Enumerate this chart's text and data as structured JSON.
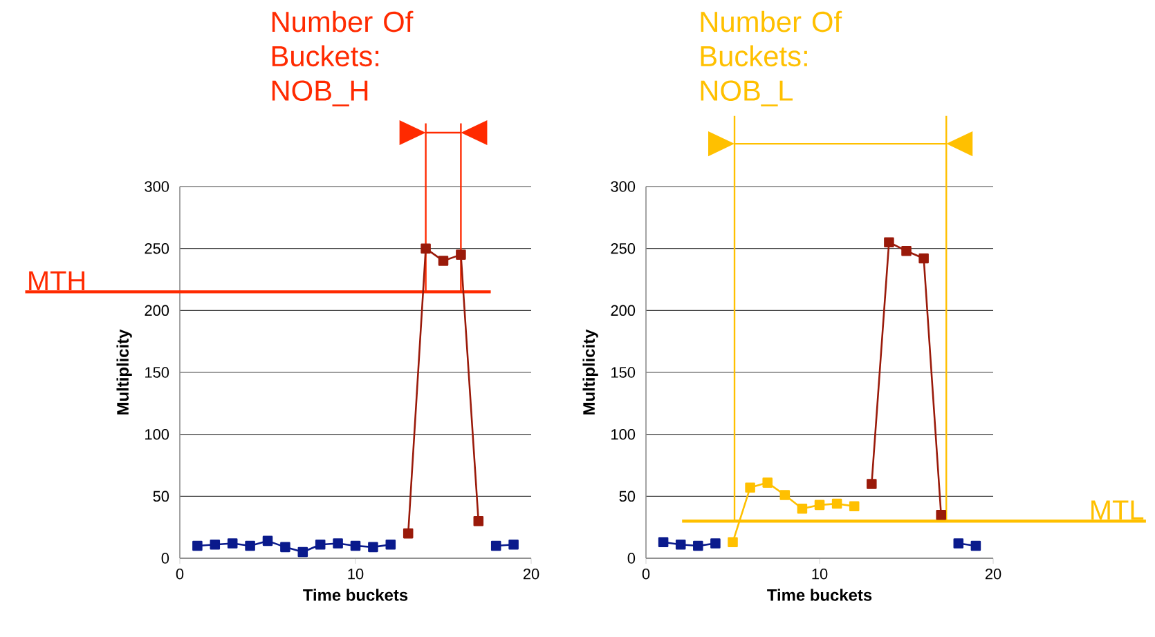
{
  "chart_data": [
    {
      "type": "line",
      "xlabel": "Time buckets",
      "ylabel": "Multiplicity",
      "xlim": [
        0,
        20
      ],
      "xticks": [
        0,
        10,
        20
      ],
      "ylim": [
        0,
        300
      ],
      "yticks": [
        0,
        50,
        100,
        150,
        200,
        250,
        300
      ],
      "grid": "y",
      "marker": "square",
      "line_style": "solid",
      "annotations": [
        "Number Of Buckets: NOB_H"
      ],
      "ref_lines": [
        {
          "axis": "y",
          "value": 215,
          "label": "MTH",
          "color": "#ff2a00"
        },
        {
          "axis": "x",
          "value": 14,
          "color": "#ff2a00"
        },
        {
          "axis": "x",
          "value": 16,
          "color": "#ff2a00"
        }
      ],
      "series": [
        {
          "color": "#0a1a8c",
          "x": [
            1,
            2,
            3,
            4,
            5,
            6,
            7,
            8,
            9,
            10,
            11,
            12,
            13,
            17,
            18,
            19
          ],
          "values": [
            10,
            11,
            12,
            10,
            14,
            9,
            5,
            11,
            12,
            10,
            9,
            11,
            null,
            null,
            10,
            11
          ]
        },
        {
          "color": "#9a1a0a",
          "x": [
            13,
            14,
            15,
            16,
            17
          ],
          "values": [
            20,
            250,
            240,
            245,
            30
          ]
        }
      ]
    },
    {
      "type": "line",
      "xlabel": "Time buckets",
      "ylabel": "Multiplicity",
      "xlim": [
        0,
        20
      ],
      "xticks": [
        0,
        10,
        20
      ],
      "ylim": [
        0,
        300
      ],
      "yticks": [
        0,
        50,
        100,
        150,
        200,
        250,
        300
      ],
      "grid": "y",
      "marker": "square",
      "line_style": "solid",
      "annotations": [
        "Number Of Buckets: NOB_L"
      ],
      "ref_lines": [
        {
          "axis": "y",
          "value": 30,
          "label": "MTL",
          "color": "#ffc000"
        },
        {
          "axis": "x",
          "value": 5.1,
          "color": "#ffc000"
        },
        {
          "axis": "x",
          "value": 17.3,
          "color": "#ffc000"
        }
      ],
      "series": [
        {
          "color": "#0a1a8c",
          "x": [
            1,
            2,
            3,
            4,
            5,
            17,
            18,
            19
          ],
          "values": [
            13,
            11,
            10,
            12,
            null,
            null,
            12,
            10
          ]
        },
        {
          "color": "#ffc000",
          "x": [
            5,
            6,
            7,
            8,
            9,
            10,
            11,
            12
          ],
          "values": [
            13,
            57,
            61,
            51,
            40,
            43,
            44,
            42
          ]
        },
        {
          "color": "#9a1a0a",
          "x": [
            13,
            14,
            15,
            16,
            17
          ],
          "values": [
            60,
            255,
            248,
            242,
            35
          ]
        }
      ]
    }
  ]
}
